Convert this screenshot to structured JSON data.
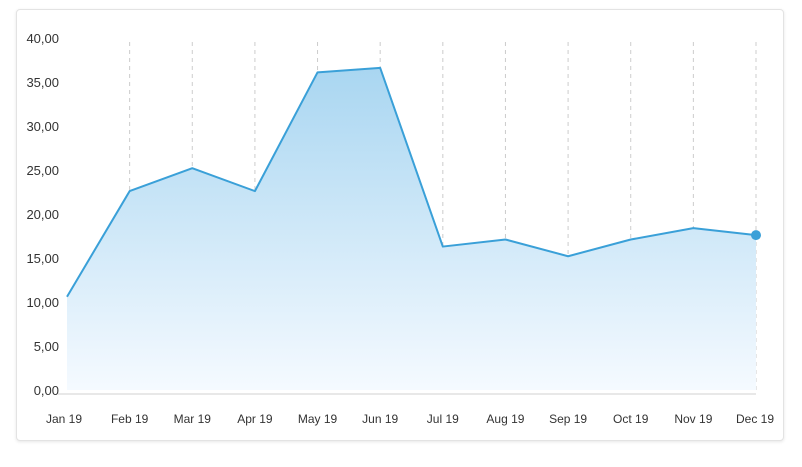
{
  "chart_data": {
    "type": "area",
    "title": "",
    "xlabel": "",
    "ylabel": "",
    "categories": [
      "Jan 19",
      "Feb 19",
      "Mar 19",
      "Apr 19",
      "May 19",
      "Jun 19",
      "Jul 19",
      "Aug 19",
      "Sep 19",
      "Oct 19",
      "Nov 19",
      "Dec 19"
    ],
    "series": [
      {
        "values": [
          10.6,
          22.6,
          25.2,
          22.6,
          36.1,
          36.6,
          16.3,
          17.1,
          15.2,
          17.1,
          18.4,
          17.6
        ]
      }
    ],
    "ylim": [
      0,
      40
    ],
    "yticks": [
      "0,00",
      "5,00",
      "10,00",
      "15,00",
      "20,00",
      "25,00",
      "30,00",
      "35,00",
      "40,00"
    ],
    "ytick_values": [
      0,
      5,
      10,
      15,
      20,
      25,
      30,
      35,
      40
    ],
    "grid": "vertical-dashed",
    "highlight_last_point": true,
    "colors": {
      "line": "#3aa0d8",
      "fill_top": "#a9d6f1",
      "fill_bottom": "#f5faff",
      "grid": "#cccccc",
      "axis": "#d0d0d0"
    }
  }
}
